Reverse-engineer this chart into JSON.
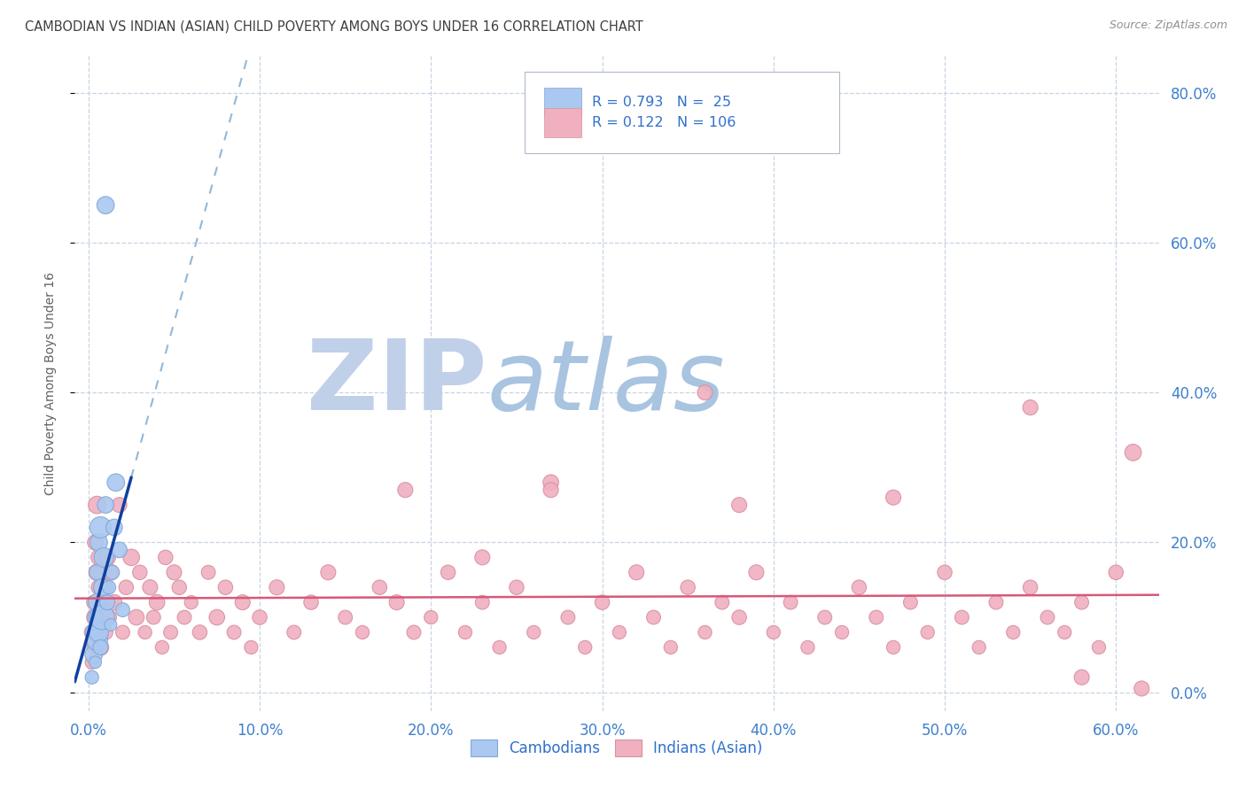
{
  "title": "CAMBODIAN VS INDIAN (ASIAN) CHILD POVERTY AMONG BOYS UNDER 16 CORRELATION CHART",
  "source": "Source: ZipAtlas.com",
  "ylabel": "Child Poverty Among Boys Under 16",
  "xlim": [
    -0.008,
    0.625
  ],
  "ylim": [
    -0.025,
    0.85
  ],
  "xticks": [
    0.0,
    0.1,
    0.2,
    0.3,
    0.4,
    0.5,
    0.6
  ],
  "yticks": [
    0.0,
    0.2,
    0.4,
    0.6,
    0.8
  ],
  "background_color": "#ffffff",
  "watermark_zip_color": "#c8d8ec",
  "watermark_atlas_color": "#a8c4e0",
  "cambodian_color": "#aac8f0",
  "cambodian_edge": "#80a8d8",
  "indian_color": "#f0b0c0",
  "indian_edge": "#d890a0",
  "blue_line_color": "#1040a0",
  "blue_dash_color": "#90b8d8",
  "pink_line_color": "#d85878",
  "R_cambodian": 0.793,
  "N_cambodian": 25,
  "R_indian": 0.122,
  "N_indian": 106,
  "grid_color": "#c8d4e4",
  "tick_color": "#4080cc",
  "title_color": "#404040",
  "legend_text_color": "#3070cc",
  "camb_x": [
    0.002,
    0.003,
    0.003,
    0.004,
    0.004,
    0.005,
    0.005,
    0.005,
    0.006,
    0.006,
    0.007,
    0.007,
    0.008,
    0.008,
    0.009,
    0.01,
    0.01,
    0.011,
    0.012,
    0.013,
    0.014,
    0.015,
    0.016,
    0.018,
    0.02
  ],
  "camb_y": [
    0.02,
    0.05,
    0.08,
    0.1,
    0.04,
    0.12,
    0.16,
    0.07,
    0.08,
    0.2,
    0.06,
    0.22,
    0.14,
    0.1,
    0.18,
    0.25,
    0.65,
    0.12,
    0.14,
    0.09,
    0.16,
    0.22,
    0.28,
    0.19,
    0.11
  ],
  "camb_sizes": [
    120,
    200,
    180,
    150,
    100,
    200,
    160,
    300,
    250,
    200,
    150,
    300,
    200,
    400,
    250,
    180,
    200,
    150,
    120,
    100,
    130,
    180,
    200,
    160,
    130
  ],
  "ind_x": [
    0.002,
    0.003,
    0.003,
    0.004,
    0.004,
    0.005,
    0.005,
    0.005,
    0.006,
    0.006,
    0.007,
    0.007,
    0.008,
    0.009,
    0.01,
    0.01,
    0.011,
    0.012,
    0.013,
    0.015,
    0.018,
    0.02,
    0.022,
    0.025,
    0.028,
    0.03,
    0.033,
    0.036,
    0.038,
    0.04,
    0.043,
    0.045,
    0.048,
    0.05,
    0.053,
    0.056,
    0.06,
    0.065,
    0.07,
    0.075,
    0.08,
    0.085,
    0.09,
    0.095,
    0.1,
    0.11,
    0.12,
    0.13,
    0.14,
    0.15,
    0.16,
    0.17,
    0.18,
    0.19,
    0.2,
    0.21,
    0.22,
    0.23,
    0.24,
    0.25,
    0.26,
    0.27,
    0.28,
    0.29,
    0.3,
    0.31,
    0.32,
    0.33,
    0.34,
    0.35,
    0.36,
    0.37,
    0.38,
    0.39,
    0.4,
    0.41,
    0.42,
    0.43,
    0.44,
    0.45,
    0.46,
    0.47,
    0.48,
    0.49,
    0.5,
    0.51,
    0.52,
    0.53,
    0.54,
    0.55,
    0.56,
    0.57,
    0.58,
    0.59,
    0.6,
    0.61,
    0.002,
    0.003,
    0.004,
    0.005,
    0.007,
    0.008,
    0.01,
    0.012,
    0.015,
    0.02
  ],
  "ind_y": [
    0.08,
    0.12,
    0.06,
    0.1,
    0.2,
    0.16,
    0.08,
    0.25,
    0.14,
    0.18,
    0.1,
    0.06,
    0.16,
    0.12,
    0.14,
    0.08,
    0.18,
    0.1,
    0.16,
    0.12,
    0.25,
    0.08,
    0.14,
    0.18,
    0.1,
    0.16,
    0.08,
    0.14,
    0.1,
    0.12,
    0.06,
    0.18,
    0.08,
    0.16,
    0.14,
    0.1,
    0.12,
    0.08,
    0.16,
    0.1,
    0.14,
    0.08,
    0.12,
    0.06,
    0.1,
    0.14,
    0.08,
    0.12,
    0.16,
    0.1,
    0.08,
    0.14,
    0.12,
    0.08,
    0.1,
    0.16,
    0.08,
    0.12,
    0.06,
    0.14,
    0.08,
    0.28,
    0.1,
    0.06,
    0.12,
    0.08,
    0.16,
    0.1,
    0.06,
    0.14,
    0.08,
    0.12,
    0.1,
    0.16,
    0.08,
    0.12,
    0.06,
    0.1,
    0.08,
    0.14,
    0.1,
    0.06,
    0.12,
    0.08,
    0.16,
    0.1,
    0.06,
    0.12,
    0.08,
    0.14,
    0.1,
    0.08,
    0.12,
    0.06,
    0.16,
    0.32,
    0.04,
    0.06,
    0.14,
    0.03,
    0.04,
    0.06,
    0.05,
    0.04,
    0.06,
    0.04
  ],
  "ind_sizes": [
    150,
    130,
    120,
    200,
    160,
    180,
    140,
    200,
    150,
    160,
    120,
    180,
    200,
    150,
    160,
    140,
    180,
    150,
    170,
    160,
    150,
    130,
    140,
    180,
    160,
    140,
    120,
    150,
    130,
    160,
    120,
    140,
    130,
    150,
    140,
    130,
    120,
    140,
    130,
    160,
    140,
    130,
    150,
    120,
    140,
    150,
    130,
    140,
    150,
    130,
    120,
    140,
    150,
    130,
    120,
    140,
    120,
    130,
    120,
    140,
    120,
    160,
    130,
    120,
    140,
    120,
    150,
    130,
    120,
    140,
    120,
    130,
    140,
    150,
    120,
    130,
    120,
    130,
    120,
    140,
    130,
    120,
    130,
    120,
    140,
    130,
    120,
    130,
    120,
    140,
    130,
    120,
    130,
    120,
    140,
    180,
    120,
    130,
    140,
    120,
    130,
    120,
    130,
    120,
    130,
    120
  ]
}
